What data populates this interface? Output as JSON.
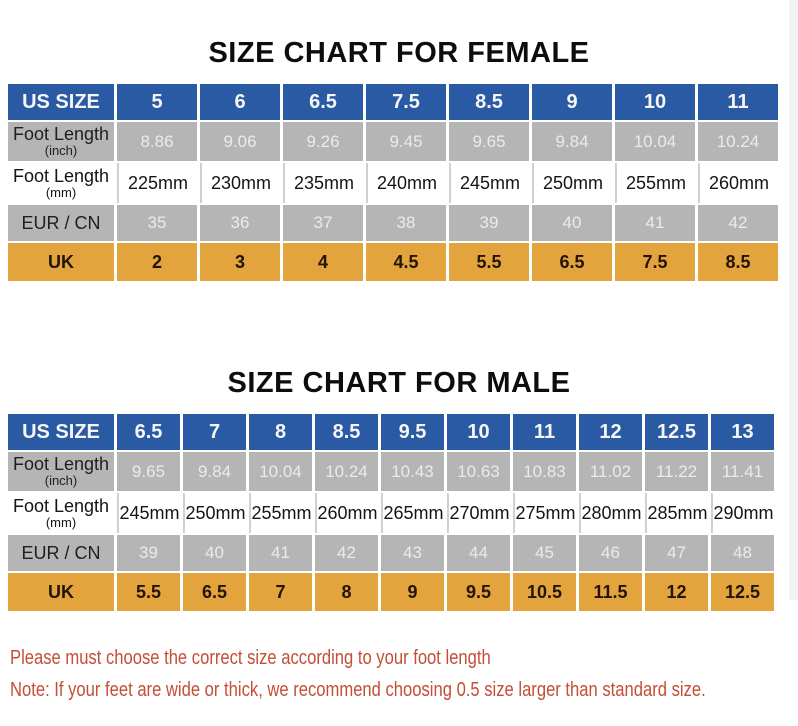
{
  "colors": {
    "header_blue": "#2b5aa5",
    "row_gray": "#b5b5b6",
    "row_orange": "#e3a33d",
    "note_red": "#c44e36",
    "background": "#ffffff"
  },
  "female": {
    "title": "SIZE CHART FOR FEMALE",
    "header": {
      "label": "US SIZE",
      "sizes": [
        "5",
        "6",
        "6.5",
        "7.5",
        "8.5",
        "9",
        "10",
        "11"
      ]
    },
    "inch": {
      "label": "Foot Length",
      "sub": "(inch)",
      "values": [
        "8.86",
        "9.06",
        "9.26",
        "9.45",
        "9.65",
        "9.84",
        "10.04",
        "10.24"
      ]
    },
    "mm": {
      "label": "Foot Length",
      "sub": "(mm)",
      "values": [
        "225mm",
        "230mm",
        "235mm",
        "240mm",
        "245mm",
        "250mm",
        "255mm",
        "260mm"
      ]
    },
    "eur": {
      "label": "EUR / CN",
      "values": [
        "35",
        "36",
        "37",
        "38",
        "39",
        "40",
        "41",
        "42"
      ]
    },
    "uk": {
      "label": "UK",
      "values": [
        "2",
        "3",
        "4",
        "4.5",
        "5.5",
        "6.5",
        "7.5",
        "8.5"
      ]
    }
  },
  "male": {
    "title": "SIZE CHART FOR MALE",
    "header": {
      "label": "US SIZE",
      "sizes": [
        "6.5",
        "7",
        "8",
        "8.5",
        "9.5",
        "10",
        "11",
        "12",
        "12.5",
        "13"
      ]
    },
    "inch": {
      "label": "Foot Length",
      "sub": "(inch)",
      "values": [
        "9.65",
        "9.84",
        "10.04",
        "10.24",
        "10.43",
        "10.63",
        "10.83",
        "11.02",
        "11.22",
        "11.41"
      ]
    },
    "mm": {
      "label": "Foot Length",
      "sub": "(mm)",
      "values": [
        "245mm",
        "250mm",
        "255mm",
        "260mm",
        "265mm",
        "270mm",
        "275mm",
        "280mm",
        "285mm",
        "290mm"
      ]
    },
    "eur": {
      "label": "EUR / CN",
      "values": [
        "39",
        "40",
        "41",
        "42",
        "43",
        "44",
        "45",
        "46",
        "47",
        "48"
      ]
    },
    "uk": {
      "label": "UK",
      "values": [
        "5.5",
        "6.5",
        "7",
        "8",
        "9",
        "9.5",
        "10.5",
        "11.5",
        "12",
        "12.5"
      ]
    }
  },
  "notes": {
    "line1": "Please must choose the correct size  according to your foot length",
    "line2": "Note: If your feet are wide or thick, we recommend choosing 0.5 size larger than standard size."
  }
}
